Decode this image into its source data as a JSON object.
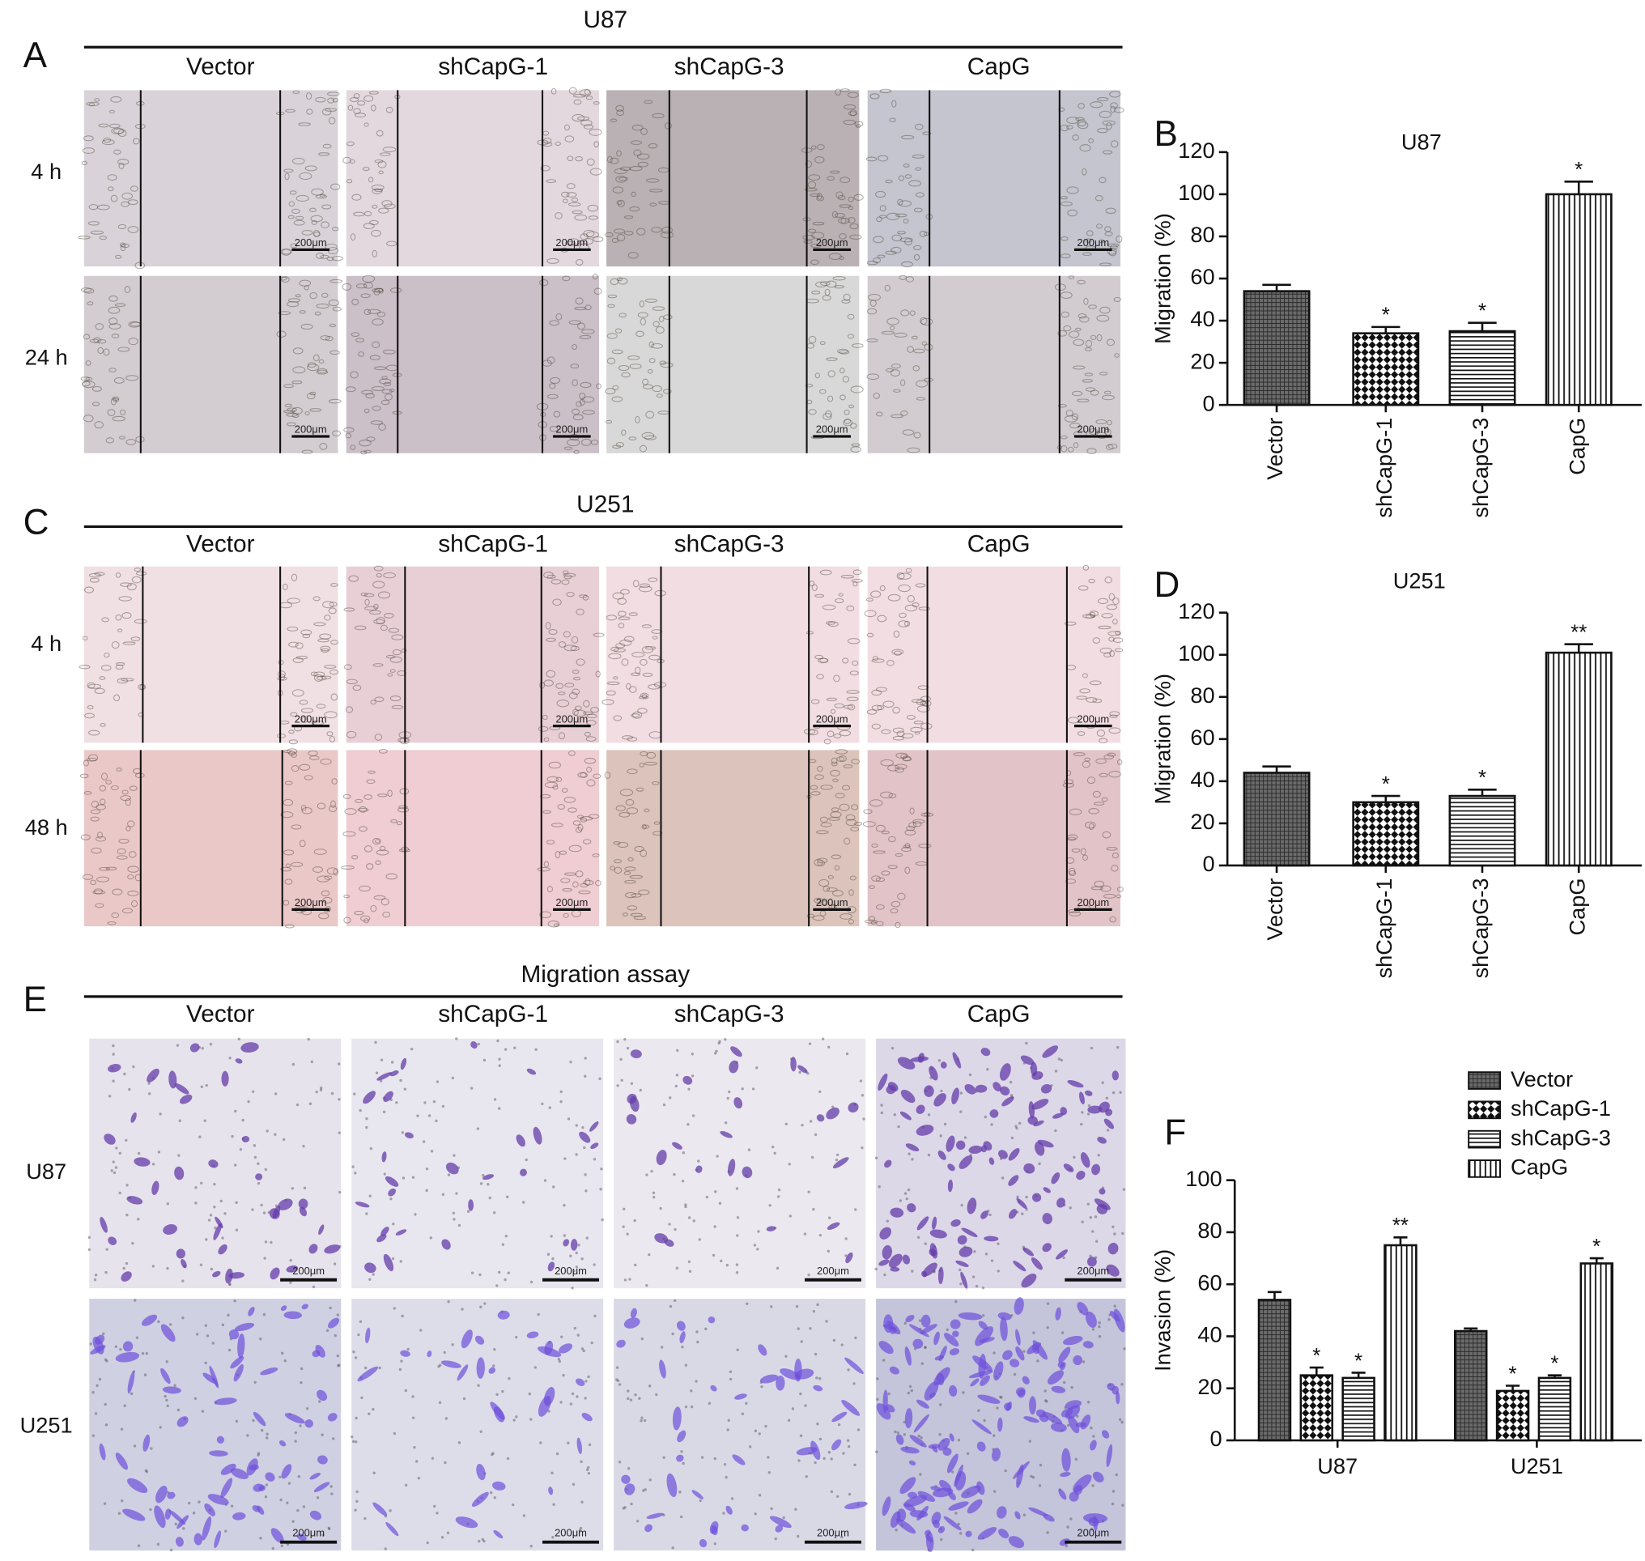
{
  "panels": [
    {
      "letter": "A",
      "title": "U87",
      "columns": [
        "Vector",
        "shCapG-1",
        "shCapG-3",
        "CapG"
      ],
      "rows": [
        "4 h",
        "24 h"
      ],
      "scale_bar": "200μm"
    },
    {
      "letter": "C",
      "title": "U251",
      "columns": [
        "Vector",
        "shCapG-1",
        "shCapG-3",
        "CapG"
      ],
      "rows": [
        "4 h",
        "48 h"
      ],
      "scale_bar": "200μm"
    },
    {
      "letter": "E",
      "title": "Migration assay",
      "columns": [
        "Vector",
        "shCapG-1",
        "shCapG-3",
        "CapG"
      ],
      "rows": [
        "U87",
        "U251"
      ],
      "scale_bar": "200μm"
    }
  ],
  "chart_data": [
    {
      "type": "bar",
      "letter": "B",
      "title": "U87",
      "y_label": "Migration (%)",
      "categories": [
        "Vector",
        "shCapG-1",
        "shCapG-3",
        "CapG"
      ],
      "values": [
        54,
        34,
        35,
        100
      ],
      "errors": [
        3,
        3,
        4,
        6
      ],
      "significance": [
        null,
        "*",
        "*",
        "*"
      ],
      "patterns": [
        "crosshatch",
        "checker",
        "horizontal",
        "vertical"
      ],
      "ylim": [
        0,
        120
      ],
      "yticks": [
        0,
        20,
        40,
        60,
        80,
        100,
        120
      ]
    },
    {
      "type": "bar",
      "letter": "D",
      "title": "U251",
      "y_label": "Migration (%)",
      "categories": [
        "Vector",
        "shCapG-1",
        "shCapG-3",
        "CapG"
      ],
      "values": [
        44,
        30,
        33,
        101
      ],
      "errors": [
        3,
        3,
        3,
        4
      ],
      "significance": [
        null,
        "*",
        "*",
        "**"
      ],
      "patterns": [
        "crosshatch",
        "checker",
        "horizontal",
        "vertical"
      ],
      "ylim": [
        0,
        120
      ],
      "yticks": [
        0,
        20,
        40,
        60,
        80,
        100,
        120
      ]
    },
    {
      "type": "grouped_bar",
      "letter": "F",
      "y_label": "Invasion (%)",
      "categories": [
        "U87",
        "U251"
      ],
      "series": [
        {
          "name": "Vector",
          "pattern": "crosshatch",
          "values": [
            54,
            42
          ],
          "errors": [
            3,
            1
          ],
          "significance": [
            null,
            null
          ]
        },
        {
          "name": "shCapG-1",
          "pattern": "checker",
          "values": [
            25,
            19
          ],
          "errors": [
            3,
            2
          ],
          "significance": [
            "*",
            "*"
          ]
        },
        {
          "name": "shCapG-3",
          "pattern": "horizontal",
          "values": [
            24,
            24
          ],
          "errors": [
            2,
            1
          ],
          "significance": [
            "*",
            "*"
          ]
        },
        {
          "name": "CapG",
          "pattern": "vertical",
          "values": [
            75,
            68
          ],
          "errors": [
            3,
            2
          ],
          "significance": [
            "**",
            "*"
          ]
        }
      ],
      "legend": "upper right",
      "ylim": [
        0,
        100
      ],
      "yticks": [
        0,
        20,
        40,
        60,
        80,
        100
      ]
    }
  ]
}
